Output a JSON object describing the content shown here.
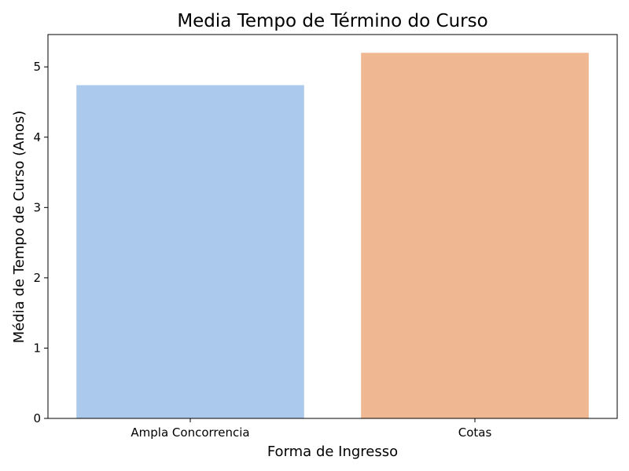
{
  "chart_data": {
    "type": "bar",
    "title": "Media Tempo de Término do Curso",
    "xlabel": "Forma de Ingresso",
    "ylabel": "Média de Tempo de Curso (Anos)",
    "categories": [
      "Ampla Concorrencia",
      "Cotas"
    ],
    "values": [
      4.74,
      5.2
    ],
    "colors": [
      "#abc9ec",
      "#efb792"
    ],
    "ylim": [
      0,
      5.46
    ],
    "yticks": [
      0,
      1,
      2,
      3,
      4,
      5
    ],
    "grid": false,
    "legend": "none"
  }
}
